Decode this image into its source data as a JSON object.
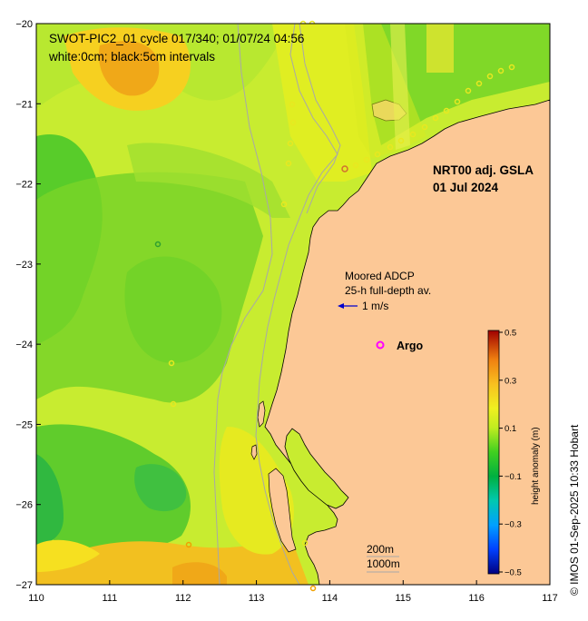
{
  "map": {
    "title_line1": "SWOT-PIC2_01 cycle 017/340; 01/07/24 04:56",
    "title_line2": "white:0cm; black:5cm intervals",
    "product_line1": "NRT00 adj. GSLA",
    "product_line2": "01 Jul 2024",
    "adcp_line1": "Moored ADCP",
    "adcp_line2": "25-h full-depth av.",
    "scale_arrow_label": "1 m/s",
    "argo_label": "Argo",
    "isobath_label_1": "200m",
    "isobath_label_2": "1000m",
    "credit": "© IMOS 01-Sep-2025 10:33 Hobart",
    "colors": {
      "land": "#fcc896",
      "argo_marker": "#ff00ff",
      "arrow": "#0000cc",
      "isobath": "#a8a8a8"
    }
  },
  "axes": {
    "x_ticks": [
      "110",
      "111",
      "112",
      "113",
      "114",
      "115",
      "116",
      "117"
    ],
    "y_ticks": [
      "−20",
      "−21",
      "−22",
      "−23",
      "−24",
      "−25",
      "−26",
      "−27"
    ],
    "x_range": [
      110,
      117
    ],
    "y_range": [
      -27,
      -20
    ]
  },
  "colorbar": {
    "label": "height anomaly (m)",
    "ticks": [
      "0.5",
      "0.3",
      "0.1",
      "−0.1",
      "−0.3",
      "−0.5"
    ],
    "range": [
      -0.5,
      0.5
    ]
  }
}
